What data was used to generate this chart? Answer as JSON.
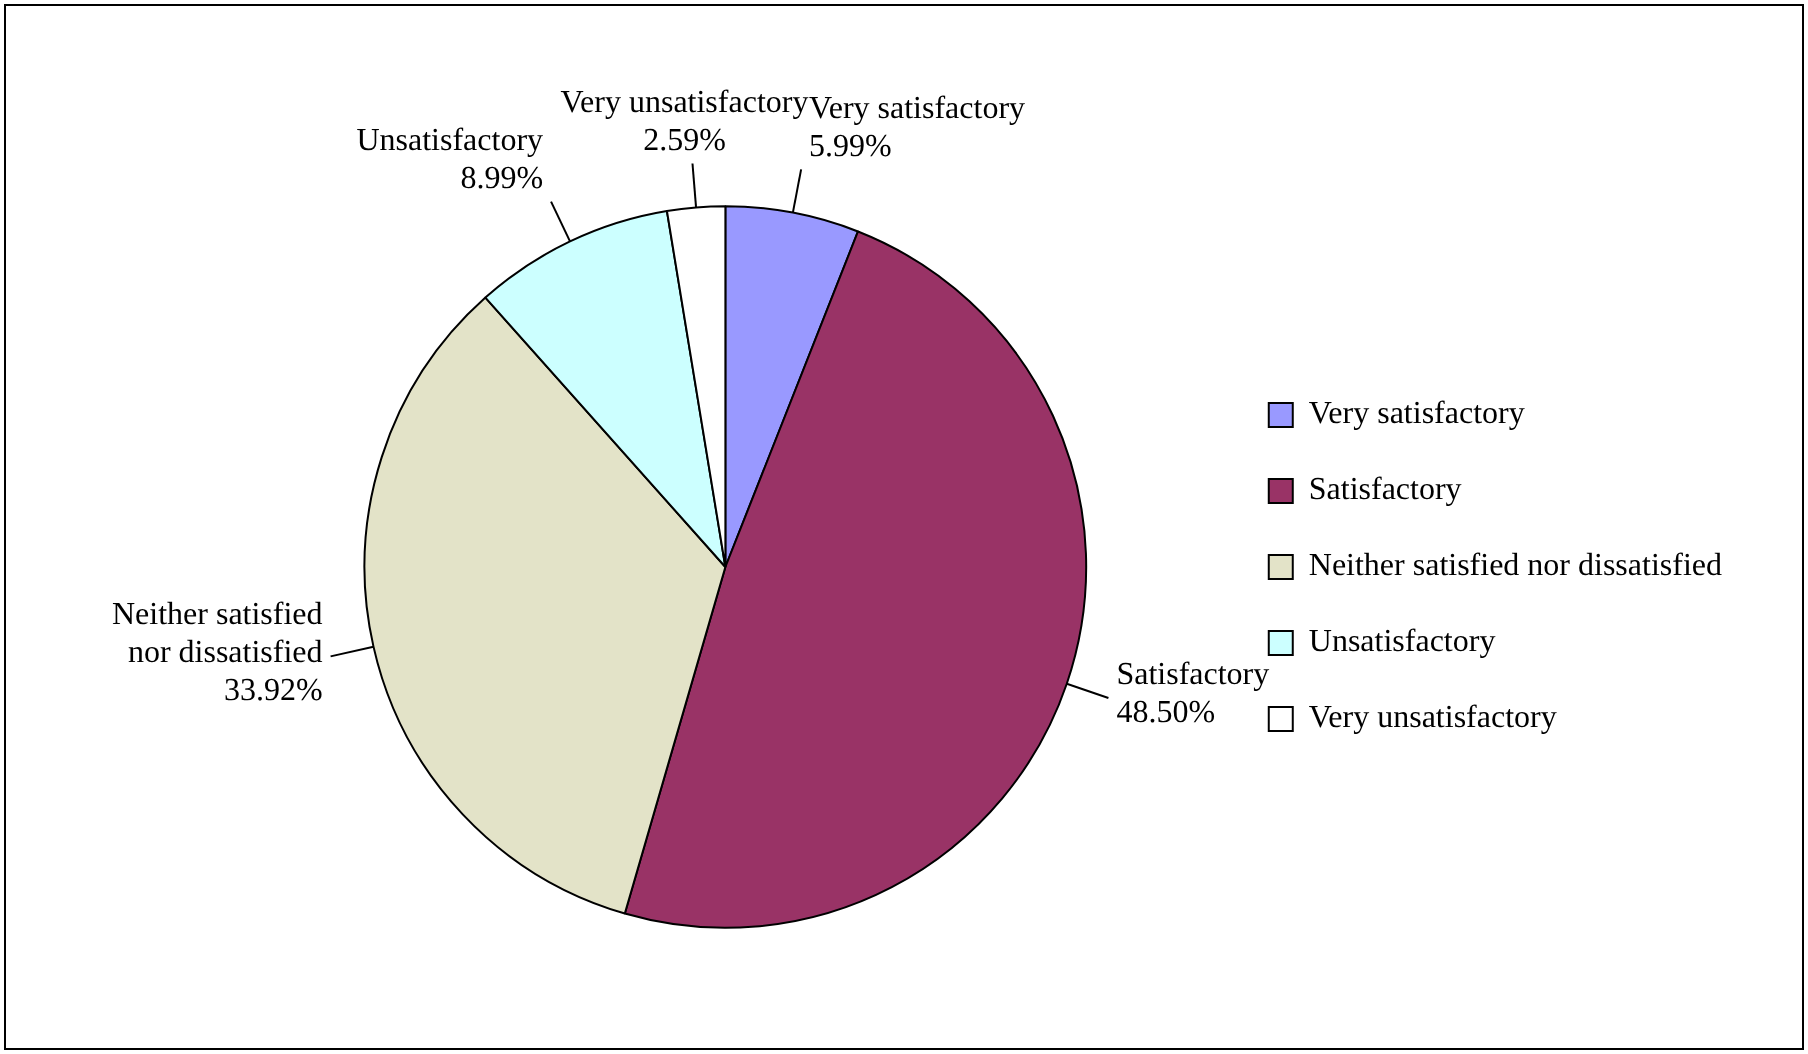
{
  "chart_data": {
    "type": "pie",
    "categories": [
      "Very satisfactory",
      "Satisfactory",
      "Neither satisfied nor dissatisfied",
      "Unsatisfactory",
      "Very unsatisfactory"
    ],
    "values": [
      5.99,
      48.5,
      33.92,
      8.99,
      2.59
    ],
    "value_labels": [
      "5.99%",
      "48.50%",
      "33.92%",
      "8.99%",
      "2.59%"
    ],
    "colors": [
      "#9999ff",
      "#993366",
      "#e3e3c8",
      "#ccffff",
      "#ffffff"
    ],
    "legend": "right"
  }
}
